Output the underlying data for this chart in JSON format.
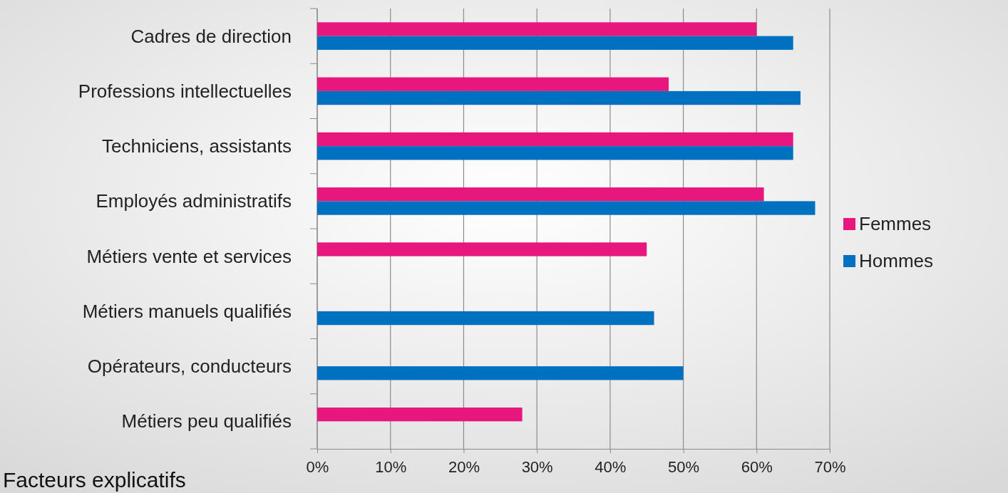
{
  "chart_data": {
    "type": "bar",
    "orientation": "horizontal",
    "categories": [
      "Cadres de direction",
      "Professions intellectuelles",
      "Techniciens, assistants",
      "Employés administratifs",
      "Métiers vente et services",
      "Métiers manuels qualifiés",
      "Opérateurs, conducteurs",
      "Métiers peu qualifiés"
    ],
    "series": [
      {
        "name": "Femmes",
        "color": "#e8177d",
        "values": [
          60,
          48,
          65,
          61,
          45,
          null,
          null,
          28
        ]
      },
      {
        "name": "Hommes",
        "color": "#0070c0",
        "values": [
          65,
          66,
          65,
          68,
          null,
          46,
          50,
          null
        ]
      }
    ],
    "xlim": [
      0,
      70
    ],
    "xticks": [
      {
        "value": 0,
        "label": "0%"
      },
      {
        "value": 10,
        "label": "10%"
      },
      {
        "value": 20,
        "label": "20%"
      },
      {
        "value": 30,
        "label": "30%"
      },
      {
        "value": 40,
        "label": "40%"
      },
      {
        "value": 50,
        "label": "50%"
      },
      {
        "value": 60,
        "label": "60%"
      },
      {
        "value": 70,
        "label": "70%"
      }
    ],
    "grid": "x",
    "legend": "right",
    "annotations": [
      "Facteurs explicatifs"
    ]
  }
}
